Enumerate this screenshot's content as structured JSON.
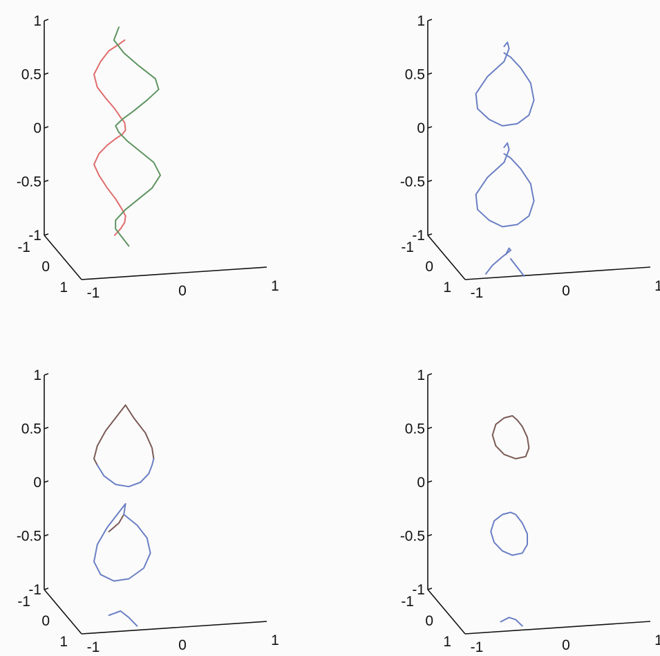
{
  "chart_data": [
    {
      "type": "line",
      "panel": "top-left",
      "projection": "3d",
      "z_ticks": [
        "1",
        "0.5",
        "0",
        "-0.5",
        "-1"
      ],
      "x_ticks": [
        "-1",
        "0",
        "1"
      ],
      "y_ticks": [
        "-1",
        "0",
        "1"
      ],
      "zlim": [
        -1,
        1
      ],
      "xlim": [
        -1,
        1
      ],
      "ylim": [
        -1,
        1
      ],
      "colors": [
        "#e06c6c",
        "#5e9460"
      ],
      "series": [
        {
          "color": "#e06c6c",
          "z": [
            0.82,
            0.78,
            0.72,
            0.62,
            0.5,
            0.38,
            0.28,
            0.18,
            0.1,
            0.05,
            -0.02,
            -0.06,
            -0.1,
            -0.16,
            -0.24,
            -0.34,
            -0.44,
            -0.56,
            -0.66,
            -0.76,
            -0.82,
            -0.88,
            -0.94,
            -1.0
          ],
          "x": [
            -0.33,
            -0.4,
            -0.52,
            -0.62,
            -0.7,
            -0.66,
            -0.56,
            -0.45,
            -0.38,
            -0.33,
            -0.32,
            -0.36,
            -0.44,
            -0.54,
            -0.64,
            -0.7,
            -0.64,
            -0.54,
            -0.44,
            -0.36,
            -0.32,
            -0.33,
            -0.38,
            -0.45
          ]
        },
        {
          "color": "#5e9460",
          "z": [
            0.94,
            0.82,
            0.7,
            0.58,
            0.46,
            0.36,
            0.26,
            0.16,
            0.08,
            0.02,
            -0.04,
            -0.12,
            -0.22,
            -0.32,
            -0.44,
            -0.56,
            -0.66,
            -0.76,
            -0.86,
            -0.94,
            -1.02,
            -1.1
          ],
          "x": [
            -0.4,
            -0.46,
            -0.34,
            -0.16,
            0.04,
            0.08,
            -0.06,
            -0.22,
            -0.36,
            -0.44,
            -0.4,
            -0.3,
            -0.14,
            0.02,
            0.1,
            0.0,
            -0.16,
            -0.32,
            -0.44,
            -0.44,
            -0.36,
            -0.28
          ]
        }
      ]
    },
    {
      "type": "line",
      "panel": "top-right",
      "projection": "3d",
      "z_ticks": [
        "1",
        "0.5",
        "0",
        "-0.5",
        "-1"
      ],
      "x_ticks": [
        "-1",
        "0",
        "1"
      ],
      "y_ticks": [
        "-1",
        "0",
        "1"
      ],
      "zlim": [
        -1,
        1
      ],
      "xlim": [
        -1,
        1
      ],
      "ylim": [
        -1,
        1
      ],
      "colors": [
        "#6a7fc4"
      ],
      "series": [
        {
          "color": "#6a7fc4",
          "loops": [
            {
              "z": [
                0.76,
                0.8,
                0.74,
                0.62,
                0.48,
                0.32,
                0.18,
                0.08,
                0.02,
                0.04,
                0.12,
                0.26,
                0.42,
                0.56,
                0.66,
                0.7
              ],
              "x": [
                -0.38,
                -0.34,
                -0.32,
                -0.38,
                -0.58,
                -0.72,
                -0.7,
                -0.56,
                -0.4,
                -0.22,
                -0.08,
                -0.02,
                -0.06,
                -0.18,
                -0.3,
                -0.38
              ]
            },
            {
              "z": [
                -0.18,
                -0.14,
                -0.2,
                -0.32,
                -0.46,
                -0.62,
                -0.76,
                -0.86,
                -0.92,
                -0.9,
                -0.82,
                -0.68,
                -0.52,
                -0.38,
                -0.28,
                -0.24
              ],
              "x": [
                -0.38,
                -0.34,
                -0.32,
                -0.38,
                -0.58,
                -0.72,
                -0.7,
                -0.56,
                -0.4,
                -0.22,
                -0.08,
                -0.02,
                -0.06,
                -0.18,
                -0.3,
                -0.38
              ]
            },
            {
              "z": [
                -1.18,
                -1.12,
                -1.14,
                -1.2,
                -1.28,
                -1.36
              ],
              "x": [
                -0.36,
                -0.32,
                -0.3,
                -0.4,
                -0.52,
                -0.6
              ]
            },
            {
              "z": [
                -1.22,
                -1.3,
                -1.38
              ],
              "x": [
                -0.3,
                -0.22,
                -0.14
              ]
            }
          ]
        }
      ]
    },
    {
      "type": "line",
      "panel": "bottom-left",
      "projection": "3d",
      "z_ticks": [
        "1",
        "0.5",
        "0",
        "-0.5",
        "-1"
      ],
      "x_ticks": [
        "-1",
        "0",
        "1"
      ],
      "y_ticks": [
        "-1",
        "0",
        "1"
      ],
      "zlim": [
        -1,
        1
      ],
      "xlim": [
        -1,
        1
      ],
      "ylim": [
        -1,
        1
      ],
      "colors": [
        "#7a5a55",
        "#6a7fc4"
      ],
      "series": [
        {
          "color": "#7a5a55",
          "loops": [
            {
              "z": [
                0.72,
                0.62,
                0.48,
                0.34,
                0.22,
                0.16
              ],
              "x": [
                -0.32,
                -0.42,
                -0.56,
                -0.66,
                -0.7,
                -0.66
              ]
            },
            {
              "z": [
                0.72,
                0.6,
                0.46,
                0.32,
                0.22
              ],
              "x": [
                -0.32,
                -0.22,
                -0.08,
                0.0,
                0.02
              ]
            },
            {
              "z": [
                -0.3,
                -0.38,
                -0.46
              ],
              "x": [
                -0.34,
                -0.4,
                -0.52
              ]
            }
          ]
        },
        {
          "color": "#6a7fc4",
          "loops": [
            {
              "z": [
                0.16,
                0.06,
                -0.02,
                -0.04,
                0.0,
                0.08,
                0.16,
                0.22
              ],
              "x": [
                -0.66,
                -0.58,
                -0.44,
                -0.28,
                -0.14,
                -0.04,
                0.0,
                0.02
              ]
            },
            {
              "z": [
                -0.3,
                -0.2,
                -0.28,
                -0.42,
                -0.58,
                -0.74,
                -0.86,
                -0.92,
                -0.9,
                -0.8,
                -0.66,
                -0.52,
                -0.4,
                -0.3
              ],
              "x": [
                -0.34,
                -0.32,
                -0.4,
                -0.54,
                -0.66,
                -0.7,
                -0.62,
                -0.46,
                -0.28,
                -0.1,
                -0.02,
                -0.06,
                -0.18,
                -0.34
              ]
            },
            {
              "z": [
                -1.24,
                -1.2,
                -1.26,
                -1.34
              ],
              "x": [
                -0.52,
                -0.38,
                -0.28,
                -0.18
              ]
            }
          ]
        }
      ]
    },
    {
      "type": "line",
      "panel": "bottom-right",
      "projection": "3d",
      "z_ticks": [
        "1",
        "0.5",
        "0",
        "-0.5",
        "-1"
      ],
      "x_ticks": [
        "-1",
        "0",
        "1"
      ],
      "y_ticks": [
        "-1",
        "0",
        "1"
      ],
      "zlim": [
        -1,
        1
      ],
      "xlim": [
        -1,
        1
      ],
      "ylim": [
        -1,
        1
      ],
      "colors": [
        "#7a5a55",
        "#6a7fc4"
      ],
      "series": [
        {
          "color": "#7a5a55",
          "loops": [
            {
              "z": [
                0.62,
                0.6,
                0.54,
                0.44,
                0.34,
                0.26,
                0.22,
                0.24,
                0.32,
                0.42,
                0.52,
                0.58,
                0.62
              ],
              "x": [
                -0.28,
                -0.38,
                -0.48,
                -0.52,
                -0.48,
                -0.38,
                -0.24,
                -0.12,
                -0.08,
                -0.1,
                -0.16,
                -0.22,
                -0.28
              ]
            }
          ]
        },
        {
          "color": "#6a7fc4",
          "loops": [
            {
              "z": [
                -0.28,
                -0.3,
                -0.36,
                -0.46,
                -0.56,
                -0.64,
                -0.68,
                -0.66,
                -0.58,
                -0.48,
                -0.38,
                -0.3,
                -0.28
              ],
              "x": [
                -0.3,
                -0.4,
                -0.5,
                -0.54,
                -0.5,
                -0.4,
                -0.28,
                -0.16,
                -0.1,
                -0.1,
                -0.16,
                -0.24,
                -0.3
              ]
            },
            {
              "z": [
                -1.3,
                -1.26,
                -1.28,
                -1.34
              ],
              "x": [
                -0.42,
                -0.32,
                -0.24,
                -0.16
              ]
            }
          ]
        }
      ]
    }
  ]
}
